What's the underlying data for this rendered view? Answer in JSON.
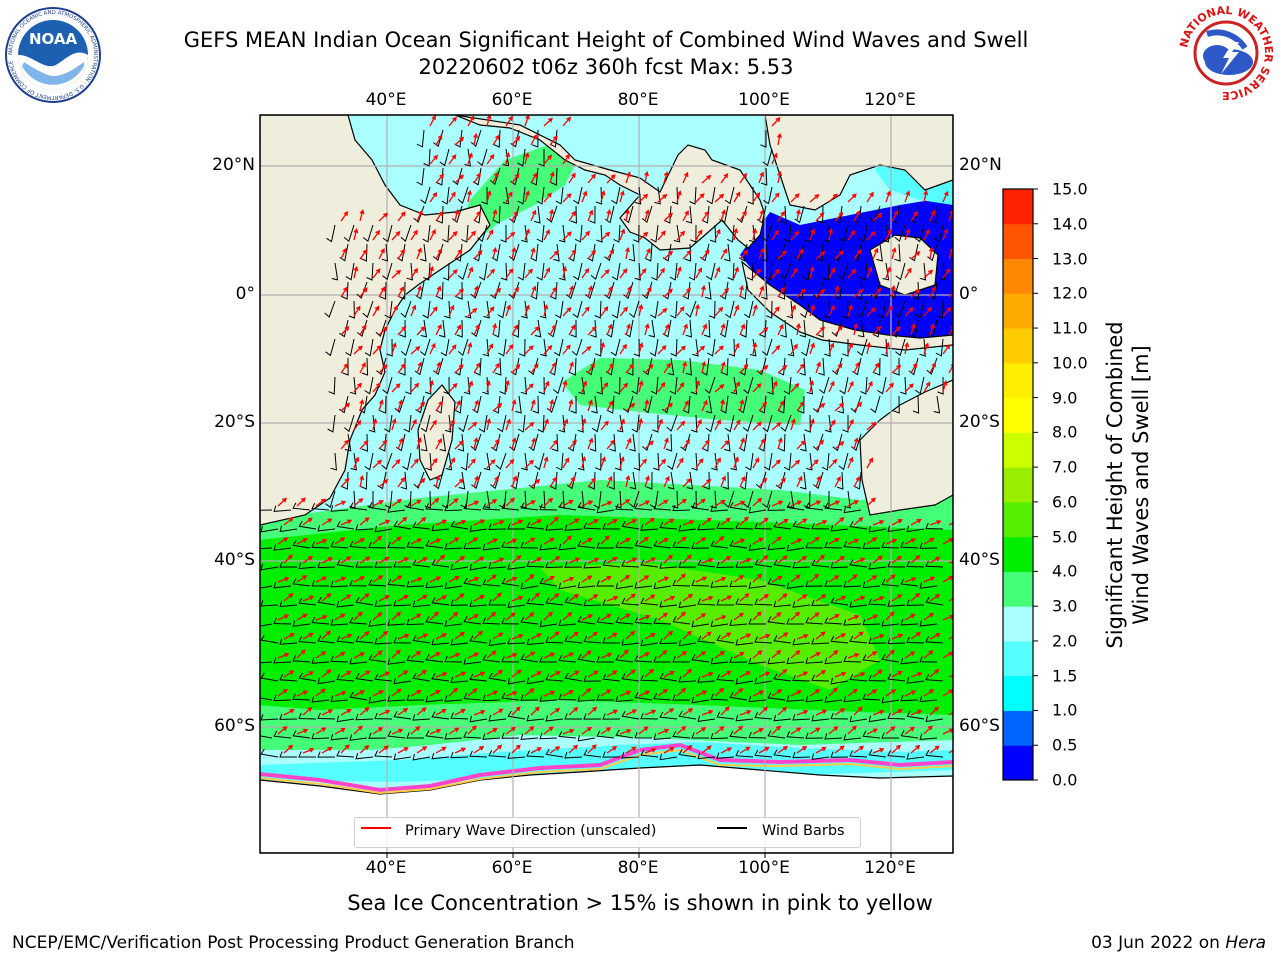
{
  "header": {
    "title_line1": "GEFS MEAN Indian Ocean Significant Height of Combined Wind Waves and Swell",
    "title_line2": "20220602 t06z 360h fcst   Max: 5.53"
  },
  "logos": {
    "noaa_label": "NOAA",
    "noaa_ring_text": "NATIONAL OCEANIC AND ATMOSPHERIC ADMINISTRATION · U.S. DEPARTMENT OF COMMERCE",
    "nws_ring_text": "NATIONAL WEATHER SERVICE"
  },
  "map": {
    "lon_ticks": [
      "40°E",
      "60°E",
      "80°E",
      "100°E",
      "120°E"
    ],
    "lat_ticks": [
      "20°N",
      "0°",
      "20°S",
      "40°S",
      "60°S"
    ],
    "extent": {
      "lon_min": 20,
      "lon_max": 130,
      "lat_min": -72,
      "lat_max": 28
    },
    "max_value_m": 5.53,
    "colors": {
      "land": "#efeddb",
      "ice_shelf": "#ffffff",
      "sea_ice_edge": "#ff44cc",
      "arrows": "#ff0000",
      "barbs": "#000000"
    }
  },
  "colorbar": {
    "label_line1": "Significant Height of Combined",
    "label_line2": "Wind Waves and Swell [m]",
    "tick_labels": [
      "0.0",
      "0.5",
      "1.0",
      "1.5",
      "2.0",
      "3.0",
      "4.0",
      "5.0",
      "6.0",
      "7.0",
      "8.0",
      "9.0",
      "10.0",
      "11.0",
      "12.0",
      "13.0",
      "14.0",
      "15.0"
    ],
    "colors": [
      "#0000ff",
      "#0066ff",
      "#00ffff",
      "#55ffff",
      "#aaffff",
      "#44ff77",
      "#00ee00",
      "#55ee00",
      "#99ee00",
      "#ccff00",
      "#ffff00",
      "#ffee00",
      "#ffcc00",
      "#ffaa00",
      "#ff8800",
      "#ff5500",
      "#ff2200"
    ]
  },
  "legend": {
    "items": [
      {
        "label": "Primary Wave Direction (unscaled)",
        "color": "#ff0000"
      },
      {
        "label": "Wind Barbs",
        "color": "#000000"
      }
    ]
  },
  "notes": {
    "sea_ice": "Sea Ice Concentration > 15% is shown in pink to yellow"
  },
  "footer": {
    "left": "NCEP/EMC/Verification Post Processing Product Generation Branch",
    "date": "03 Jun 2022 on ",
    "machine": "Hera"
  }
}
